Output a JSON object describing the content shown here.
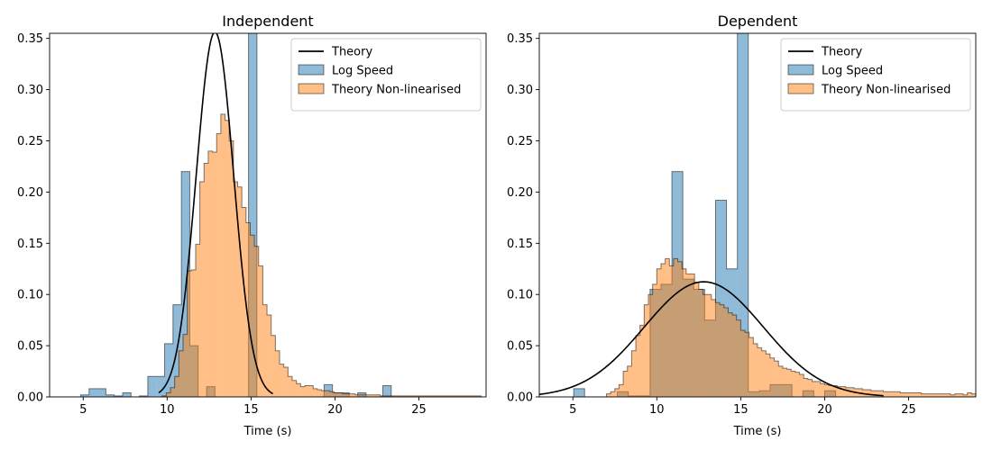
{
  "colors": {
    "theory": "#000000",
    "log_speed": "#1f77b4",
    "non_linearised": "#ff7f0e"
  },
  "chart_data": [
    {
      "type": "histogram",
      "title": "Independent",
      "xlabel": "Time (s)",
      "ylabel": "",
      "xlim": [
        3.0,
        29.0
      ],
      "ylim": [
        0.0,
        0.355
      ],
      "xticks": [
        5,
        10,
        15,
        20,
        25
      ],
      "yticks": [
        0.0,
        0.05,
        0.1,
        0.15,
        0.2,
        0.25,
        0.3,
        0.35
      ],
      "legend_position": "top-right",
      "legend": [
        "Theory",
        "Log Speed",
        "Theory Non-linearised"
      ],
      "series": [
        {
          "name": "Log Speed",
          "kind": "hist",
          "bin_edges": [
            2.85,
            3.35,
            3.85,
            4.35,
            4.85,
            5.35,
            5.85,
            6.35,
            6.85,
            7.35,
            7.85,
            8.35,
            8.85,
            9.35,
            9.85,
            10.35,
            10.85,
            11.35,
            11.85,
            12.35,
            12.85,
            13.35,
            13.85,
            14.35,
            14.85,
            15.35,
            15.85,
            16.35,
            16.85,
            17.35,
            17.85,
            18.35,
            18.85,
            19.35,
            19.85,
            20.35,
            20.85,
            21.35,
            21.85,
            22.35,
            22.85,
            23.35,
            23.85,
            24.35,
            24.85,
            25.35,
            25.85,
            26.35,
            26.85,
            27.35,
            27.85,
            28.35,
            28.85
          ],
          "values": [
            0,
            0,
            0,
            0,
            0.002,
            0.008,
            0.008,
            0.002,
            0.001,
            0.004,
            0.0,
            0.001,
            0.02,
            0.02,
            0.052,
            0.09,
            0.22,
            0.05,
            0.0,
            0.01,
            0.0,
            0.0,
            0.0,
            0.0,
            0.36,
            0.0,
            0.0,
            0.0,
            0.0,
            0.0,
            0.0,
            0.0,
            0.0,
            0.012,
            0.004,
            0.004,
            0.0,
            0.004,
            0.0,
            0.0,
            0.011,
            0.0,
            0.0,
            0.0,
            0.0,
            0.0,
            0.0,
            0.0,
            0.0,
            0.0,
            0.0,
            0.0
          ]
        },
        {
          "name": "Theory Non-linearised",
          "kind": "hist",
          "bin_edges": [
            9.7,
            9.95,
            10.2,
            10.45,
            10.7,
            10.95,
            11.2,
            11.45,
            11.7,
            11.95,
            12.2,
            12.45,
            12.7,
            12.95,
            13.2,
            13.45,
            13.7,
            13.95,
            14.2,
            14.45,
            14.7,
            14.95,
            15.2,
            15.45,
            15.7,
            15.95,
            16.2,
            16.45,
            16.7,
            16.95,
            17.2,
            17.45,
            17.7,
            17.95,
            18.2,
            18.45,
            18.7,
            18.95,
            19.2,
            19.45,
            19.7,
            19.95,
            20.2,
            20.45,
            20.7,
            20.95,
            21.2,
            21.45,
            21.7,
            21.95,
            22.2,
            22.45,
            22.7,
            22.95,
            23.2,
            23.45,
            23.7,
            23.95,
            24.2,
            24.45,
            24.7,
            24.95,
            25.2,
            25.45,
            25.7,
            25.95,
            26.2,
            26.45,
            26.7,
            26.95,
            27.2,
            27.45,
            27.7,
            27.95,
            28.2,
            28.45,
            28.7
          ],
          "values": [
            0.001,
            0.004,
            0.009,
            0.02,
            0.045,
            0.061,
            0.123,
            0.124,
            0.149,
            0.21,
            0.228,
            0.24,
            0.239,
            0.257,
            0.276,
            0.27,
            0.25,
            0.21,
            0.205,
            0.185,
            0.17,
            0.158,
            0.147,
            0.128,
            0.09,
            0.08,
            0.06,
            0.045,
            0.032,
            0.029,
            0.02,
            0.016,
            0.013,
            0.01,
            0.011,
            0.011,
            0.008,
            0.007,
            0.006,
            0.006,
            0.005,
            0.004,
            0.004,
            0.003,
            0.003,
            0.003,
            0.002,
            0.002,
            0.002,
            0.002,
            0.002,
            0.002,
            0.001,
            0.001,
            0.001,
            0.001,
            0.001,
            0.001,
            0.001,
            0.001,
            0.001,
            0.001,
            0.001,
            0.001,
            0.001,
            0.001,
            0.001,
            0.001,
            0.001,
            0.001,
            0.001,
            0.001,
            0.001,
            0.001,
            0.001,
            0.001
          ]
        },
        {
          "name": "Theory",
          "kind": "line",
          "distribution": "normal",
          "mean": 12.85,
          "sd": 1.12,
          "x_range": [
            9.5,
            16.3
          ]
        }
      ]
    },
    {
      "type": "histogram",
      "title": "Dependent",
      "xlabel": "Time (s)",
      "ylabel": "",
      "xlim": [
        3.0,
        29.0
      ],
      "ylim": [
        0.0,
        0.355
      ],
      "xticks": [
        5,
        10,
        15,
        20,
        25
      ],
      "yticks": [
        0.0,
        0.05,
        0.1,
        0.15,
        0.2,
        0.25,
        0.3,
        0.35
      ],
      "legend_position": "top-right",
      "legend": [
        "Theory",
        "Log Speed",
        "Theory Non-linearised"
      ],
      "series": [
        {
          "name": "Log Speed",
          "kind": "hist",
          "bin_edges": [
            5.05,
            5.7,
            6.35,
            7.0,
            7.65,
            8.3,
            8.95,
            9.6,
            10.25,
            10.9,
            11.55,
            12.2,
            12.85,
            13.5,
            14.15,
            14.8,
            15.45,
            16.1,
            16.75,
            17.4,
            18.05,
            18.7,
            19.35,
            20.0,
            20.65,
            21.3,
            21.95,
            22.6,
            23.25
          ],
          "values": [
            0.008,
            0.0,
            0.0,
            0.0,
            0.005,
            0.001,
            0.001,
            0.105,
            0.11,
            0.22,
            0.115,
            0.105,
            0.075,
            0.192,
            0.125,
            0.36,
            0.005,
            0.006,
            0.012,
            0.012,
            0.0,
            0.006,
            0.0,
            0.006,
            0.0,
            0.0,
            0.0,
            0.0
          ]
        },
        {
          "name": "Theory Non-linearised",
          "kind": "hist",
          "bin_edges": [
            7.0,
            7.25,
            7.5,
            7.75,
            8.0,
            8.25,
            8.5,
            8.75,
            9.0,
            9.25,
            9.5,
            9.75,
            10.0,
            10.25,
            10.5,
            10.75,
            11.0,
            11.25,
            11.5,
            11.75,
            12.0,
            12.25,
            12.5,
            12.75,
            13.0,
            13.25,
            13.5,
            13.75,
            14.0,
            14.25,
            14.5,
            14.75,
            15.0,
            15.25,
            15.5,
            15.75,
            16.0,
            16.25,
            16.5,
            16.75,
            17.0,
            17.25,
            17.5,
            17.75,
            18.0,
            18.25,
            18.5,
            18.75,
            19.0,
            19.25,
            19.5,
            19.75,
            20.0,
            20.25,
            20.5,
            20.75,
            21.0,
            21.25,
            21.5,
            21.75,
            22.0,
            22.25,
            22.5,
            22.75,
            23.0,
            23.25,
            23.5,
            23.75,
            24.0,
            24.25,
            24.5,
            24.75,
            25.0,
            25.25,
            25.5,
            25.75,
            26.0,
            26.25,
            26.5,
            26.75,
            27.0,
            27.25,
            27.5,
            27.75,
            28.0,
            28.25,
            28.5,
            28.75,
            29.0
          ],
          "values": [
            0.003,
            0.005,
            0.008,
            0.012,
            0.025,
            0.03,
            0.045,
            0.06,
            0.07,
            0.09,
            0.1,
            0.11,
            0.125,
            0.13,
            0.135,
            0.128,
            0.135,
            0.132,
            0.125,
            0.12,
            0.12,
            0.112,
            0.105,
            0.1,
            0.1,
            0.095,
            0.092,
            0.09,
            0.087,
            0.082,
            0.08,
            0.075,
            0.065,
            0.063,
            0.058,
            0.052,
            0.048,
            0.045,
            0.042,
            0.038,
            0.035,
            0.03,
            0.028,
            0.027,
            0.025,
            0.024,
            0.022,
            0.018,
            0.017,
            0.015,
            0.015,
            0.013,
            0.012,
            0.011,
            0.011,
            0.01,
            0.01,
            0.009,
            0.009,
            0.008,
            0.008,
            0.007,
            0.007,
            0.006,
            0.006,
            0.006,
            0.005,
            0.005,
            0.005,
            0.005,
            0.004,
            0.004,
            0.004,
            0.004,
            0.004,
            0.003,
            0.003,
            0.003,
            0.003,
            0.003,
            0.003,
            0.003,
            0.002,
            0.003,
            0.003,
            0.002,
            0.004,
            0.003
          ]
        },
        {
          "name": "Theory",
          "kind": "line",
          "distribution": "normal",
          "mean": 12.8,
          "sd": 3.55,
          "x_range": [
            2.9,
            23.5
          ]
        }
      ]
    }
  ]
}
